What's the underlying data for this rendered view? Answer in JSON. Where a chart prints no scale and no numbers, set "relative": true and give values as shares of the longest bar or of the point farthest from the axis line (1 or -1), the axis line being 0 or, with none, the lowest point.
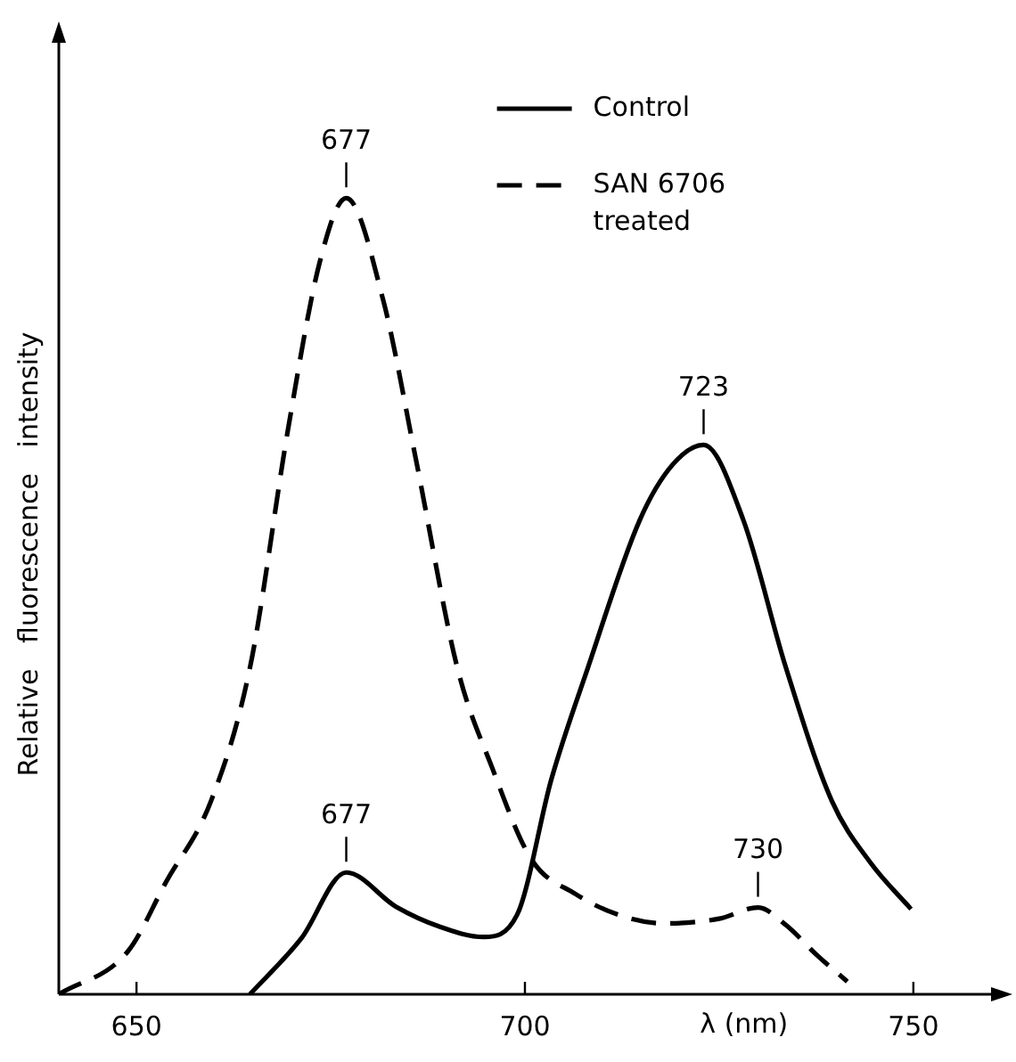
{
  "chart_data": {
    "type": "line",
    "relative": true,
    "xlabel": "λ (nm)",
    "ylabel": "Relative fluorescence intensity",
    "xlim": [
      640,
      760
    ],
    "xticks": [
      650,
      700,
      750
    ],
    "legend": "top right",
    "grid": false,
    "marker": "none",
    "series": [
      {
        "name": "Control",
        "color": "#000000",
        "line_style": "solid",
        "x": [
          664.6,
          671.2,
          677,
          683.4,
          689,
          694.7,
          699,
          703.4,
          708.1,
          714.8,
          719,
          723,
          728.1,
          733.6,
          739.5,
          744.5,
          749.7
        ],
        "values": [
          0,
          0.07,
          0.153,
          0.11,
          0.085,
          0.072,
          0.1,
          0.27,
          0.41,
          0.596,
          0.665,
          0.69,
          0.596,
          0.41,
          0.243,
          0.165,
          0.107
        ]
      },
      {
        "name": "SAN 6706 treated",
        "color": "#000000",
        "line_style": "dashed",
        "x": [
          640,
          648.9,
          653.8,
          659.6,
          664.6,
          669.6,
          673.6,
          677,
          681.8,
          685.9,
          691.3,
          695.8,
          700.8,
          706.5,
          712,
          718,
          725,
          730,
          733.6,
          737.5,
          741.5
        ],
        "values": [
          0,
          0.054,
          0.141,
          0.243,
          0.41,
          0.715,
          0.92,
          1,
          0.87,
          0.675,
          0.41,
          0.284,
          0.17,
          0.126,
          0.1,
          0.089,
          0.095,
          0.109,
          0.087,
          0.05,
          0.016
        ]
      }
    ],
    "annotations": [
      {
        "text": "677",
        "x": 677,
        "y": 1
      },
      {
        "text": "723",
        "x": 723,
        "y": 0.69
      },
      {
        "text": "677",
        "x": 677,
        "y": 0.153
      },
      {
        "text": "730",
        "x": 730,
        "y": 0.109
      }
    ]
  }
}
